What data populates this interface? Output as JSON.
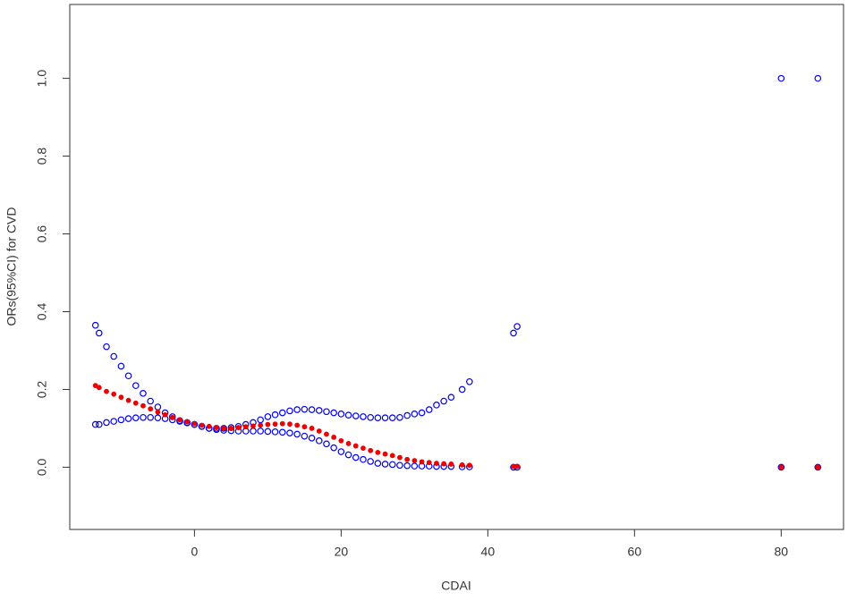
{
  "chart_data": {
    "type": "scatter",
    "x_label": "CDAI",
    "y_label": "ORs(95%CI) for CVD",
    "x": [
      -13.5,
      -13,
      -12,
      -11,
      -10,
      -9,
      -8,
      -7,
      -6,
      -5,
      -4,
      -3,
      -2,
      -1,
      0,
      1,
      2,
      3,
      4,
      5,
      6,
      7,
      8,
      9,
      10,
      11,
      12,
      13,
      14,
      15,
      16,
      17,
      18,
      19,
      20,
      21,
      22,
      23,
      24,
      25,
      26,
      27,
      28,
      29,
      30,
      31,
      32,
      33,
      34,
      35,
      36.5,
      37.5,
      43.5,
      44,
      80,
      85
    ],
    "series": [
      {
        "color": "#0000ee",
        "marker": "open",
        "values": [
          0.365,
          0.345,
          0.31,
          0.285,
          0.26,
          0.235,
          0.21,
          0.19,
          0.17,
          0.155,
          0.14,
          0.13,
          0.12,
          0.115,
          0.11,
          0.105,
          0.1,
          0.1,
          0.1,
          0.102,
          0.105,
          0.11,
          0.115,
          0.122,
          0.13,
          0.135,
          0.14,
          0.145,
          0.148,
          0.149,
          0.148,
          0.146,
          0.143,
          0.14,
          0.137,
          0.134,
          0.132,
          0.13,
          0.128,
          0.127,
          0.127,
          0.127,
          0.128,
          0.133,
          0.137,
          0.14,
          0.148,
          0.16,
          0.17,
          0.18,
          0.2,
          0.22,
          0.345,
          0.362,
          1.0,
          1.0
        ]
      },
      {
        "color": "#0000ee",
        "marker": "open",
        "values": [
          0.11,
          0.11,
          0.115,
          0.118,
          0.122,
          0.125,
          0.127,
          0.128,
          0.128,
          0.127,
          0.125,
          0.122,
          0.118,
          0.114,
          0.11,
          0.105,
          0.1,
          0.097,
          0.095,
          0.094,
          0.093,
          0.093,
          0.093,
          0.093,
          0.092,
          0.091,
          0.09,
          0.088,
          0.085,
          0.08,
          0.075,
          0.068,
          0.06,
          0.05,
          0.04,
          0.032,
          0.025,
          0.02,
          0.015,
          0.01,
          0.008,
          0.007,
          0.005,
          0.004,
          0.003,
          0.003,
          0.003,
          0.002,
          0.002,
          0.002,
          0.001,
          0.001,
          0,
          0,
          0,
          0
        ]
      },
      {
        "color": "#ee0000",
        "marker": "filled",
        "values": [
          0.21,
          0.205,
          0.195,
          0.188,
          0.18,
          0.172,
          0.165,
          0.158,
          0.15,
          0.142,
          0.135,
          0.128,
          0.122,
          0.117,
          0.112,
          0.108,
          0.105,
          0.102,
          0.1,
          0.1,
          0.102,
          0.104,
          0.106,
          0.108,
          0.11,
          0.111,
          0.112,
          0.111,
          0.108,
          0.104,
          0.1,
          0.093,
          0.085,
          0.077,
          0.068,
          0.061,
          0.055,
          0.049,
          0.043,
          0.038,
          0.034,
          0.03,
          0.025,
          0.02,
          0.017,
          0.014,
          0.012,
          0.01,
          0.009,
          0.008,
          0.006,
          0.005,
          0.002,
          0.002,
          0,
          0
        ]
      }
    ],
    "xlim": [
      -17,
      88.5
    ],
    "ylim": [
      -0.16,
      1.19
    ],
    "xticks": [
      0,
      20,
      40,
      60,
      80
    ],
    "yticks": [
      {
        "value": 0,
        "label": "0.0"
      },
      0.2,
      0.4,
      0.6,
      0.8,
      {
        "value": 1,
        "label": "1.0"
      }
    ]
  }
}
